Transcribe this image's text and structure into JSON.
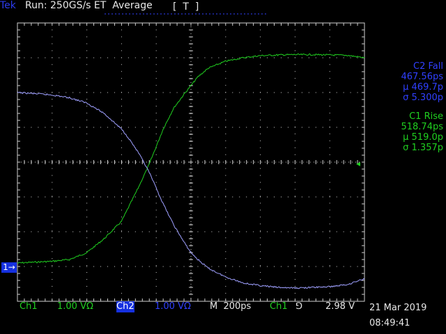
{
  "header": {
    "brand": "Tek",
    "run_status": "Run: 250GS/s ET  Average",
    "trigger_position_marker": "[  T  ]"
  },
  "measurements": {
    "c2_fall": {
      "title": "C2 Fall",
      "value": "467.56ps",
      "mean": "µ 469.7p",
      "sigma": "σ 5.300p"
    },
    "c1_rise": {
      "title": "C1 Rise",
      "value": "518.74ps",
      "mean": "µ 519.0p",
      "sigma": "σ 1.357p"
    }
  },
  "markers": {
    "ch1_ground": "1→",
    "trigger_level_arrow": "◂"
  },
  "status_bar": {
    "ch1_label": "Ch1",
    "ch1_scale": "1.00 VΩ",
    "ch2_label": "Ch2",
    "ch2_scale": "1.00 VΩ",
    "timebase": "M  200ps",
    "trigger_source": "Ch1",
    "trigger_slope": "⅁",
    "trigger_level": "2.98 V"
  },
  "datetime": {
    "date": "21 Mar 2019",
    "time": "08:49:41"
  },
  "colors": {
    "ch1": "#20d020",
    "ch2": "#9fa0ff",
    "graticule": "#d0d0d0",
    "accent": "#1530e0"
  },
  "chart_data": {
    "type": "line",
    "xlim": [
      0,
      10
    ],
    "ylim": [
      -4,
      4
    ],
    "series": [
      {
        "color": "#20d020",
        "x": [
          0,
          1,
          1.5,
          2,
          2.5,
          3,
          3.2,
          3.5,
          3.8,
          4,
          4.2,
          4.5,
          4.8,
          5,
          5.2,
          5.5,
          6,
          6.5,
          7,
          7.5,
          8,
          8.5,
          9,
          9.5,
          10
        ],
        "y": [
          -2.9,
          -2.85,
          -2.8,
          -2.6,
          -2.2,
          -1.7,
          -1.3,
          -0.7,
          -0.05,
          0.45,
          0.95,
          1.55,
          1.95,
          2.2,
          2.45,
          2.7,
          2.9,
          3.0,
          3.06,
          3.08,
          3.09,
          3.09,
          3.08,
          3.07,
          3.0
        ]
      },
      {
        "color": "#9fa0ff",
        "x": [
          0,
          0.5,
          1,
          1.5,
          2,
          2.5,
          3,
          3.2,
          3.5,
          3.8,
          4,
          4.2,
          4.5,
          4.8,
          5,
          5.2,
          5.5,
          6,
          6.5,
          7,
          7.5,
          8,
          8.5,
          9,
          9.5,
          10
        ],
        "y": [
          2.0,
          1.97,
          1.93,
          1.85,
          1.7,
          1.4,
          0.95,
          0.7,
          0.25,
          -0.3,
          -0.75,
          -1.2,
          -1.8,
          -2.3,
          -2.6,
          -2.8,
          -3.05,
          -3.3,
          -3.47,
          -3.55,
          -3.6,
          -3.62,
          -3.6,
          -3.58,
          -3.52,
          -3.35
        ]
      }
    ]
  }
}
